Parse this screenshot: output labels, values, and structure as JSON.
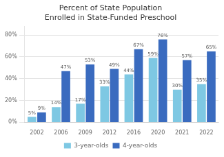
{
  "chart_data": {
    "type": "bar",
    "title": "Percent of State Population\nEnrolled in State-Funded Preschool",
    "categories": [
      "2002",
      "2006",
      "2009",
      "2012",
      "2016",
      "2020",
      "2021",
      "2022"
    ],
    "series": [
      {
        "name": "3-year-olds",
        "color": "#7ec8e3",
        "values": [
          5,
          14,
          17,
          33,
          44,
          59,
          30,
          35
        ],
        "value_labels": [
          "5%",
          "14%",
          "17%",
          "33%",
          "44%",
          "59%",
          "30%",
          "35%"
        ]
      },
      {
        "name": "4-year-olds",
        "color": "#3a6bbf",
        "values": [
          9,
          47,
          53,
          49,
          67,
          76,
          57,
          65
        ],
        "value_labels": [
          "9%",
          "47%",
          "53%",
          "49%",
          "67%",
          "76%",
          "57%",
          "65%"
        ]
      }
    ],
    "ylim": [
      0,
      88
    ],
    "yticks": [
      {
        "value": 0,
        "label": "0%"
      },
      {
        "value": 20,
        "label": "20%"
      },
      {
        "value": 40,
        "label": "40%"
      },
      {
        "value": 60,
        "label": "60%"
      },
      {
        "value": 80,
        "label": "80%"
      }
    ],
    "grid": true,
    "legend": "bottom",
    "data_labels": true
  }
}
